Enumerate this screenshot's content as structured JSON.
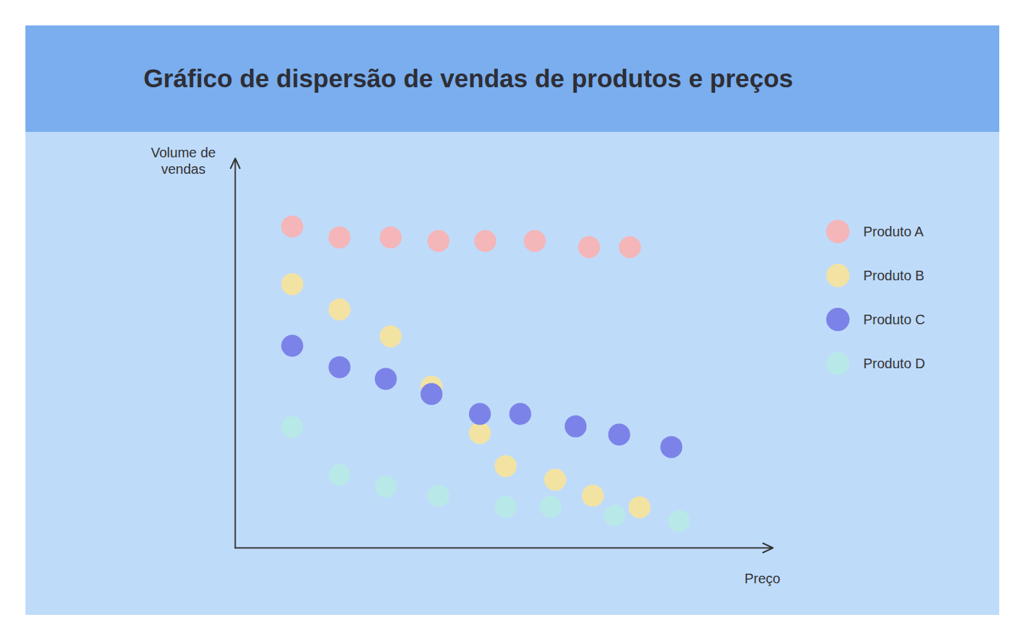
{
  "chart_data": {
    "type": "scatter",
    "title": "Gráfico de dispersão de vendas de produtos e preços",
    "x_label": "Preço",
    "y_label": "Volume de vendas",
    "xlim": [
      0,
      100
    ],
    "ylim": [
      0,
      100
    ],
    "tick_labels": false,
    "grid": false,
    "legend": "right",
    "series": [
      {
        "name": "Produto A",
        "color": "#f4b6b8",
        "x": [
          10.6,
          19.4,
          28.9,
          37.8,
          46.5,
          55.7,
          65.8,
          73.4
        ],
        "values": [
          82.5,
          79.7,
          79.7,
          78.8,
          78.8,
          78.8,
          77.2,
          77.2
        ]
      },
      {
        "name": "Produto B",
        "color": "#f3e3a2",
        "x": [
          10.6,
          19.4,
          28.9,
          36.5,
          45.5,
          50.3,
          59.5,
          66.5,
          75.2
        ],
        "values": [
          67.7,
          61.2,
          54.3,
          41.4,
          29.5,
          21.0,
          17.5,
          13.4,
          10.4
        ]
      },
      {
        "name": "Produto C",
        "color": "#7b83e8",
        "x": [
          10.6,
          19.4,
          28.0,
          36.5,
          45.5,
          53.0,
          63.3,
          71.4,
          81.1
        ],
        "values": [
          51.9,
          46.4,
          43.4,
          39.5,
          34.4,
          34.4,
          31.2,
          29.1,
          25.9
        ]
      },
      {
        "name": "Produto D",
        "color": "#b8e8e8",
        "x": [
          10.6,
          19.4,
          28.0,
          37.8,
          50.3,
          58.7,
          70.6,
          82.5
        ],
        "values": [
          31.0,
          18.7,
          15.7,
          13.4,
          10.6,
          10.6,
          8.3,
          6.9
        ]
      }
    ]
  }
}
